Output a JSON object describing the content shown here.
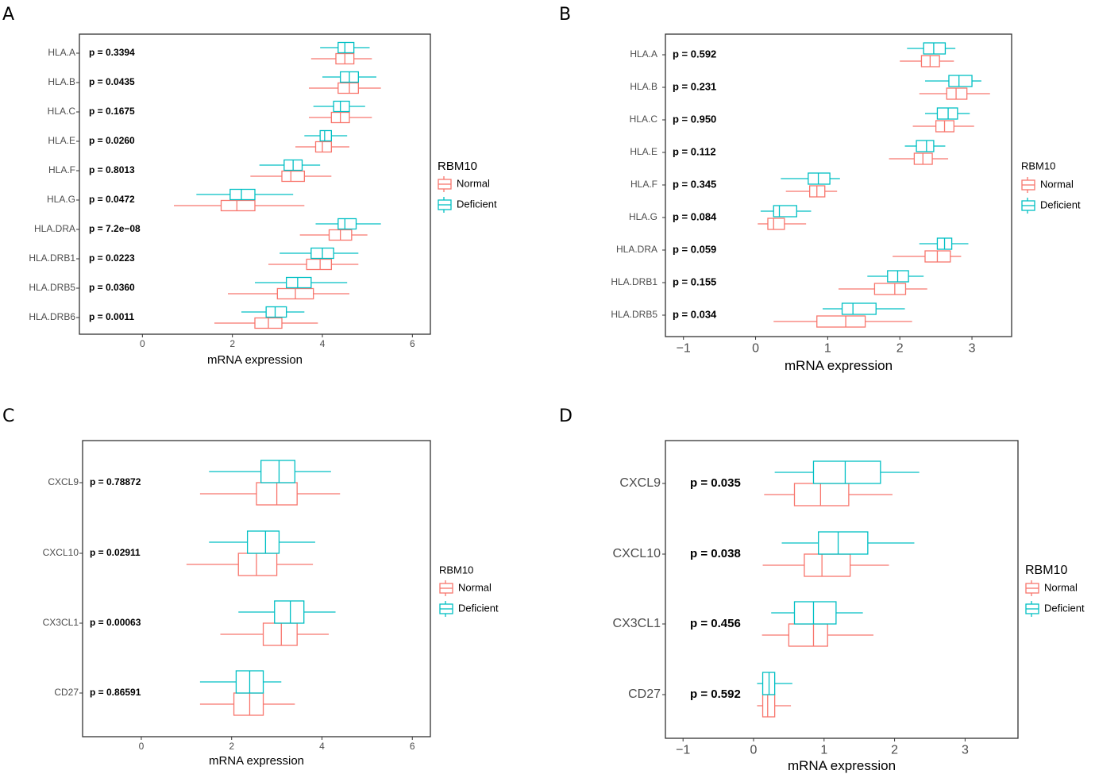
{
  "colors": {
    "Normal": "#F8766D",
    "Deficient": "#00BFC4",
    "frame": "#333333",
    "tick": "#333333"
  },
  "legend": {
    "title": "RBM10",
    "entries": [
      "Normal",
      "Deficient"
    ]
  },
  "chart_data": [
    {
      "type": "boxplot",
      "panel": "A",
      "xlabel": "mRNA expression",
      "ylabel": "",
      "xlim": [
        -1.4,
        6.4
      ],
      "xticks": [
        0,
        2,
        4,
        6
      ],
      "xtick_labels": [
        "0",
        "2",
        "4",
        "6"
      ],
      "categories": [
        "HLA.A",
        "HLA.B",
        "HLA.C",
        "HLA.E",
        "HLA.F",
        "HLA.G",
        "HLA.DRA",
        "HLA.DRB1",
        "HLA.DRB5",
        "HLA.DRB6"
      ],
      "p_values": [
        "p = 0.3394",
        "p = 0.0435",
        "p = 0.1675",
        "p = 0.0260",
        "p = 0.8013",
        "p = 0.0472",
        "p = 7.2e−08",
        "p = 0.0223",
        "p = 0.0360",
        "p = 0.0011"
      ],
      "series": [
        {
          "name": "Normal",
          "boxes": [
            {
              "whisker_lo": 3.75,
              "q1": 4.3,
              "median": 4.5,
              "q3": 4.7,
              "whisker_hi": 5.1
            },
            {
              "whisker_lo": 3.7,
              "q1": 4.35,
              "median": 4.6,
              "q3": 4.8,
              "whisker_hi": 5.3
            },
            {
              "whisker_lo": 3.7,
              "q1": 4.2,
              "median": 4.4,
              "q3": 4.6,
              "whisker_hi": 5.1
            },
            {
              "whisker_lo": 3.4,
              "q1": 3.85,
              "median": 4.0,
              "q3": 4.2,
              "whisker_hi": 4.6
            },
            {
              "whisker_lo": 2.4,
              "q1": 3.1,
              "median": 3.3,
              "q3": 3.6,
              "whisker_hi": 4.2
            },
            {
              "whisker_lo": 0.7,
              "q1": 1.75,
              "median": 2.1,
              "q3": 2.5,
              "whisker_hi": 3.6
            },
            {
              "whisker_lo": 3.5,
              "q1": 4.15,
              "median": 4.4,
              "q3": 4.65,
              "whisker_hi": 5.0
            },
            {
              "whisker_lo": 2.8,
              "q1": 3.65,
              "median": 3.95,
              "q3": 4.2,
              "whisker_hi": 4.8
            },
            {
              "whisker_lo": 1.9,
              "q1": 3.0,
              "median": 3.4,
              "q3": 3.8,
              "whisker_hi": 4.6
            },
            {
              "whisker_lo": 1.6,
              "q1": 2.5,
              "median": 2.8,
              "q3": 3.1,
              "whisker_hi": 3.9
            }
          ]
        },
        {
          "name": "Deficient",
          "boxes": [
            {
              "whisker_lo": 3.95,
              "q1": 4.35,
              "median": 4.5,
              "q3": 4.7,
              "whisker_hi": 5.05
            },
            {
              "whisker_lo": 4.0,
              "q1": 4.4,
              "median": 4.6,
              "q3": 4.8,
              "whisker_hi": 5.2
            },
            {
              "whisker_lo": 3.8,
              "q1": 4.25,
              "median": 4.4,
              "q3": 4.6,
              "whisker_hi": 4.95
            },
            {
              "whisker_lo": 3.6,
              "q1": 3.95,
              "median": 4.05,
              "q3": 4.2,
              "whisker_hi": 4.55
            },
            {
              "whisker_lo": 2.6,
              "q1": 3.15,
              "median": 3.35,
              "q3": 3.55,
              "whisker_hi": 3.95
            },
            {
              "whisker_lo": 1.2,
              "q1": 1.95,
              "median": 2.2,
              "q3": 2.5,
              "whisker_hi": 3.35
            },
            {
              "whisker_lo": 3.85,
              "q1": 4.35,
              "median": 4.5,
              "q3": 4.75,
              "whisker_hi": 5.3
            },
            {
              "whisker_lo": 3.05,
              "q1": 3.75,
              "median": 4.0,
              "q3": 4.25,
              "whisker_hi": 4.8
            },
            {
              "whisker_lo": 2.5,
              "q1": 3.2,
              "median": 3.45,
              "q3": 3.75,
              "whisker_hi": 4.55
            },
            {
              "whisker_lo": 2.2,
              "q1": 2.75,
              "median": 2.95,
              "q3": 3.2,
              "whisker_hi": 3.6
            }
          ]
        }
      ]
    },
    {
      "type": "boxplot",
      "panel": "B",
      "xlabel": "mRNA expression",
      "ylabel": "",
      "xlim": [
        -1.25,
        3.55
      ],
      "xticks": [
        -1,
        0,
        1,
        2,
        3
      ],
      "xtick_labels": [
        "−1",
        "0",
        "1",
        "2",
        "3"
      ],
      "categories": [
        "HLA.A",
        "HLA.B",
        "HLA.C",
        "HLA.E",
        "HLA.F",
        "HLA.G",
        "HLA.DRA",
        "HLA.DRB1",
        "HLA.DRB5"
      ],
      "p_values": [
        "p = 0.592",
        "p = 0.231",
        "p = 0.950",
        "p = 0.112",
        "p = 0.345",
        "p = 0.084",
        "p = 0.059",
        "p = 0.155",
        "p = 0.034"
      ],
      "series": [
        {
          "name": "Normal",
          "boxes": [
            {
              "whisker_lo": 2.0,
              "q1": 2.3,
              "median": 2.42,
              "q3": 2.55,
              "whisker_hi": 2.75
            },
            {
              "whisker_lo": 2.27,
              "q1": 2.65,
              "median": 2.78,
              "q3": 2.93,
              "whisker_hi": 3.25
            },
            {
              "whisker_lo": 2.18,
              "q1": 2.5,
              "median": 2.62,
              "q3": 2.75,
              "whisker_hi": 3.03
            },
            {
              "whisker_lo": 1.85,
              "q1": 2.2,
              "median": 2.32,
              "q3": 2.45,
              "whisker_hi": 2.67
            },
            {
              "whisker_lo": 0.42,
              "q1": 0.75,
              "median": 0.85,
              "q3": 0.96,
              "whisker_hi": 1.13
            },
            {
              "whisker_lo": 0.03,
              "q1": 0.17,
              "median": 0.25,
              "q3": 0.4,
              "whisker_hi": 0.7
            },
            {
              "whisker_lo": 1.9,
              "q1": 2.35,
              "median": 2.52,
              "q3": 2.7,
              "whisker_hi": 2.85
            },
            {
              "whisker_lo": 1.15,
              "q1": 1.65,
              "median": 1.93,
              "q3": 2.08,
              "whisker_hi": 2.38
            },
            {
              "whisker_lo": 0.25,
              "q1": 0.85,
              "median": 1.25,
              "q3": 1.52,
              "whisker_hi": 2.17
            }
          ]
        },
        {
          "name": "Deficient",
          "boxes": [
            {
              "whisker_lo": 2.1,
              "q1": 2.33,
              "median": 2.47,
              "q3": 2.63,
              "whisker_hi": 2.77
            },
            {
              "whisker_lo": 2.35,
              "q1": 2.68,
              "median": 2.82,
              "q3": 3.0,
              "whisker_hi": 3.13
            },
            {
              "whisker_lo": 2.35,
              "q1": 2.52,
              "median": 2.67,
              "q3": 2.8,
              "whisker_hi": 2.97
            },
            {
              "whisker_lo": 2.07,
              "q1": 2.23,
              "median": 2.37,
              "q3": 2.47,
              "whisker_hi": 2.63
            },
            {
              "whisker_lo": 0.35,
              "q1": 0.73,
              "median": 0.87,
              "q3": 1.03,
              "whisker_hi": 1.17
            },
            {
              "whisker_lo": 0.07,
              "q1": 0.25,
              "median": 0.33,
              "q3": 0.57,
              "whisker_hi": 0.77
            },
            {
              "whisker_lo": 2.27,
              "q1": 2.52,
              "median": 2.62,
              "q3": 2.72,
              "whisker_hi": 2.95
            },
            {
              "whisker_lo": 1.55,
              "q1": 1.83,
              "median": 1.97,
              "q3": 2.12,
              "whisker_hi": 2.33
            },
            {
              "whisker_lo": 0.93,
              "q1": 1.2,
              "median": 1.35,
              "q3": 1.67,
              "whisker_hi": 2.07
            }
          ]
        }
      ]
    },
    {
      "type": "boxplot",
      "panel": "C",
      "xlabel": "mRNA expression",
      "ylabel": "",
      "xlim": [
        -1.3,
        6.4
      ],
      "xticks": [
        0,
        2,
        4,
        6
      ],
      "xtick_labels": [
        "0",
        "2",
        "4",
        "6"
      ],
      "categories": [
        "CXCL9",
        "CXCL10",
        "CX3CL1",
        "CD27"
      ],
      "p_values": [
        "p = 0.78872",
        "p = 0.02911",
        "p = 0.00063",
        "p = 0.86591"
      ],
      "series": [
        {
          "name": "Normal",
          "boxes": [
            {
              "whisker_lo": 1.3,
              "q1": 2.55,
              "median": 3.0,
              "q3": 3.45,
              "whisker_hi": 4.4
            },
            {
              "whisker_lo": 1.0,
              "q1": 2.15,
              "median": 2.55,
              "q3": 3.0,
              "whisker_hi": 3.8
            },
            {
              "whisker_lo": 1.75,
              "q1": 2.7,
              "median": 3.1,
              "q3": 3.45,
              "whisker_hi": 4.15
            },
            {
              "whisker_lo": 1.3,
              "q1": 2.05,
              "median": 2.4,
              "q3": 2.7,
              "whisker_hi": 3.4
            }
          ]
        },
        {
          "name": "Deficient",
          "boxes": [
            {
              "whisker_lo": 1.5,
              "q1": 2.65,
              "median": 3.05,
              "q3": 3.4,
              "whisker_hi": 4.2
            },
            {
              "whisker_lo": 1.5,
              "q1": 2.35,
              "median": 2.75,
              "q3": 3.05,
              "whisker_hi": 3.85
            },
            {
              "whisker_lo": 2.15,
              "q1": 2.95,
              "median": 3.3,
              "q3": 3.6,
              "whisker_hi": 4.3
            },
            {
              "whisker_lo": 1.3,
              "q1": 2.1,
              "median": 2.4,
              "q3": 2.7,
              "whisker_hi": 3.1
            }
          ]
        }
      ]
    },
    {
      "type": "boxplot",
      "panel": "D",
      "xlabel": "mRNA expression",
      "ylabel": "",
      "xlim": [
        -1.25,
        3.75
      ],
      "xticks": [
        -1,
        0,
        1,
        2,
        3
      ],
      "xtick_labels": [
        "−1",
        "0",
        "1",
        "2",
        "3"
      ],
      "categories": [
        "CXCL9",
        "CXCL10",
        "CX3CL1",
        "CD27"
      ],
      "p_values": [
        "p = 0.035",
        "p = 0.038",
        "p = 0.456",
        "p = 0.592"
      ],
      "series": [
        {
          "name": "Normal",
          "boxes": [
            {
              "whisker_lo": 0.15,
              "q1": 0.58,
              "median": 0.95,
              "q3": 1.35,
              "whisker_hi": 1.97
            },
            {
              "whisker_lo": 0.13,
              "q1": 0.72,
              "median": 0.97,
              "q3": 1.37,
              "whisker_hi": 1.92
            },
            {
              "whisker_lo": 0.12,
              "q1": 0.5,
              "median": 0.85,
              "q3": 1.05,
              "whisker_hi": 1.7
            },
            {
              "whisker_lo": 0.05,
              "q1": 0.13,
              "median": 0.2,
              "q3": 0.3,
              "whisker_hi": 0.53
            }
          ]
        },
        {
          "name": "Deficient",
          "boxes": [
            {
              "whisker_lo": 0.3,
              "q1": 0.85,
              "median": 1.3,
              "q3": 1.8,
              "whisker_hi": 2.35
            },
            {
              "whisker_lo": 0.4,
              "q1": 0.92,
              "median": 1.2,
              "q3": 1.62,
              "whisker_hi": 2.28
            },
            {
              "whisker_lo": 0.25,
              "q1": 0.58,
              "median": 0.85,
              "q3": 1.17,
              "whisker_hi": 1.55
            },
            {
              "whisker_lo": 0.05,
              "q1": 0.13,
              "median": 0.22,
              "q3": 0.3,
              "whisker_hi": 0.55
            }
          ]
        }
      ]
    }
  ]
}
